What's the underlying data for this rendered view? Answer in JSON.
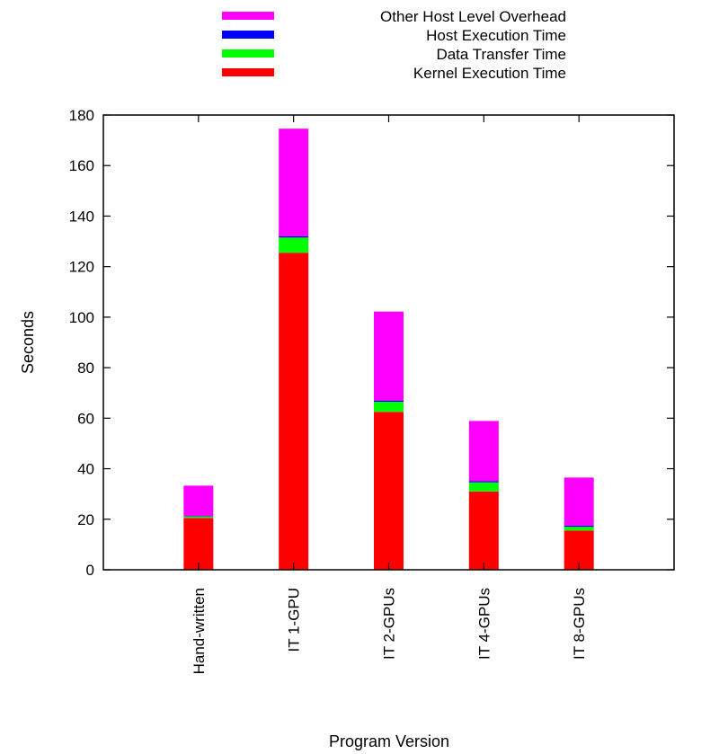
{
  "chart_data": {
    "type": "bar",
    "stacked": true,
    "title": "",
    "xlabel": "Program Version",
    "ylabel": "Seconds",
    "ylim": [
      0,
      180
    ],
    "yticks": [
      0,
      20,
      40,
      60,
      80,
      100,
      120,
      140,
      160,
      180
    ],
    "categories": [
      "Hand-written",
      "IT 1-GPU",
      "IT 2-GPUs",
      "IT 4-GPUs",
      "IT 8-GPUs"
    ],
    "series": [
      {
        "name": "Kernel Execution Time",
        "color": "#ff0000",
        "values": [
          20.5,
          125.5,
          62.5,
          31.0,
          15.5
        ]
      },
      {
        "name": "Data Transfer Time",
        "color": "#00ff00",
        "values": [
          0.6,
          6.0,
          4.0,
          3.6,
          1.5
        ]
      },
      {
        "name": "Host Execution Time",
        "color": "#0000ff",
        "values": [
          0.2,
          0.5,
          0.5,
          0.5,
          0.5
        ]
      },
      {
        "name": "Other Host Level Overhead",
        "color": "#ff00ff",
        "values": [
          12.0,
          42.6,
          35.2,
          23.8,
          19.0
        ]
      }
    ],
    "legend_order": [
      "Other Host Level Overhead",
      "Host Execution Time",
      "Data Transfer Time",
      "Kernel Execution Time"
    ],
    "legend_position": "top",
    "grid": false
  }
}
